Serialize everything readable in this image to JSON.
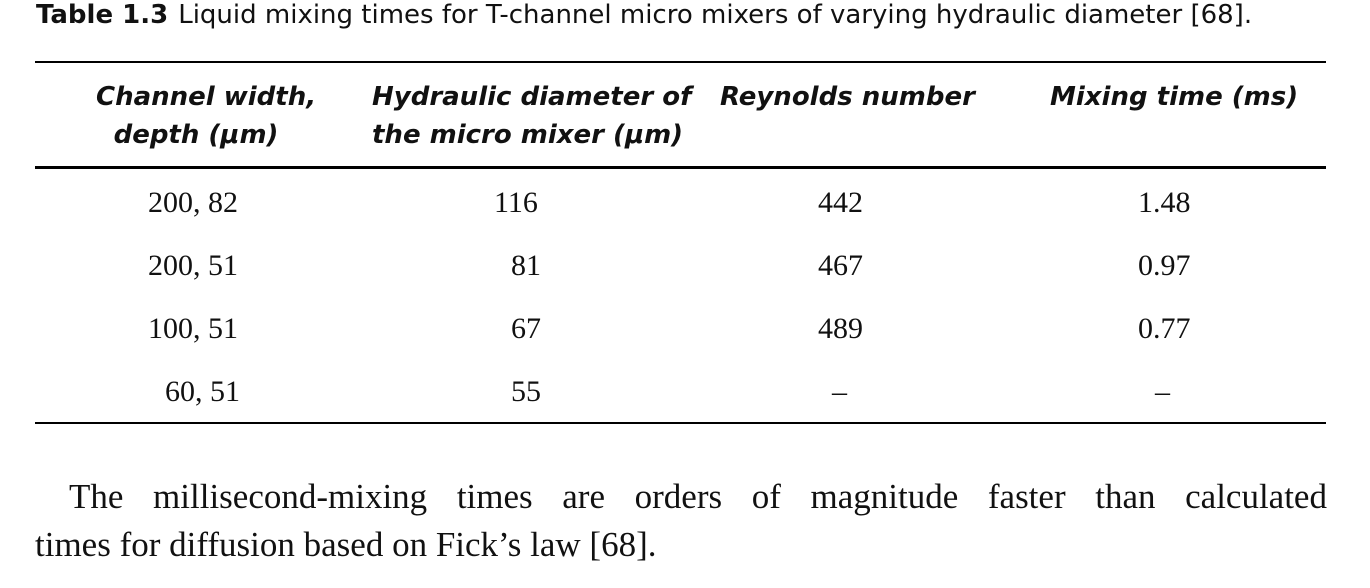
{
  "caption": {
    "label": "Table 1.3",
    "text": "Liquid mixing times for T-channel micro mixers of varying hydraulic diameter [68]."
  },
  "table": {
    "headers": [
      [
        "Channel width,",
        "depth (μm)"
      ],
      [
        "Hydraulic diameter of",
        "the micro mixer (μm)"
      ],
      [
        "Reynolds number"
      ],
      [
        "Mixing time (ms)"
      ]
    ],
    "rows": [
      [
        "200, 82",
        "116",
        "442",
        "1.48"
      ],
      [
        "200, 51",
        "81",
        "467",
        "0.97"
      ],
      [
        "100, 51",
        "67",
        "489",
        "0.77"
      ],
      [
        "60, 51",
        "55",
        "–",
        "–"
      ]
    ]
  },
  "paragraph": {
    "line1_words": [
      "The",
      "millisecond-mixing",
      "times",
      "are",
      "orders",
      "of",
      "magnitude",
      "faster",
      "than",
      "calculated"
    ],
    "line2": "times for diffusion based on Fick’s law [68]."
  }
}
